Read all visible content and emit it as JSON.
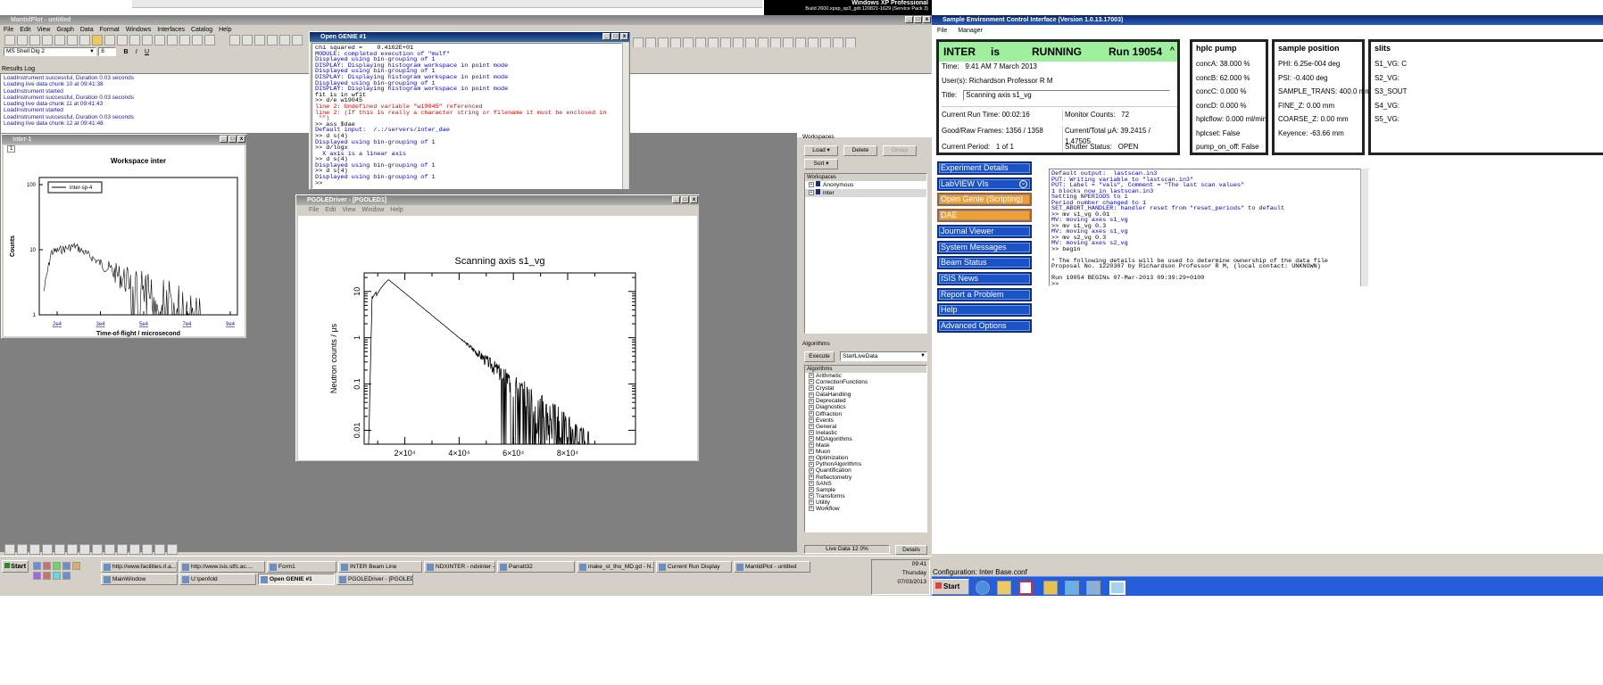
{
  "xp": {
    "title": "Windows XP Professional",
    "build": "Build 2600.xpsp_sp3_gdr.120821-1629 (Service Pack 3)"
  },
  "mantid": {
    "title": "MantidPlot - untitled",
    "menu": [
      "File",
      "Edit",
      "View",
      "Graph",
      "Data",
      "Format",
      "Windows",
      "Interfaces",
      "Catalog",
      "Help"
    ],
    "font_select": "MS Shell Dlg 2",
    "size_select": "8",
    "results_title": "Results Log",
    "log": [
      "LoadInstrument successful, Duration 0.03 seconds",
      "Loading live data chunk 10 at 09:41:38",
      "LoadInstrument started",
      "LoadInstrument successful, Duration 0.03 seconds",
      "Loading live data chunk 11 at 09:41:43",
      "LoadInstrument started",
      "LoadInstrument successful, Duration 0.03 seconds",
      "Loading live data chunk 12 at 09:41:48"
    ],
    "inter_window": {
      "title": "inter-1",
      "plot_title": "Workspace inter",
      "legend": "inter-sp-4",
      "ylabel": "Counts",
      "xlabel": "Time-of-flight / microsecond",
      "yticks": [
        "100",
        "10",
        "1"
      ],
      "xticks": [
        "2e4",
        "3e4",
        "5e4",
        "7e4",
        "9e4"
      ],
      "marker": "1"
    },
    "workspaces": {
      "title": "Workspaces",
      "load": "Load",
      "delete": "Delete",
      "group": "Group",
      "sort": "Sort",
      "items": [
        "Anonymous",
        "inter"
      ]
    },
    "algorithms": {
      "title": "Algorithms",
      "execute": "Execute",
      "selected": "StartLiveData",
      "header": "Algorithms",
      "items": [
        "Arithmetic",
        "CorrectionFunctions",
        "Crystal",
        "DataHandling",
        "Deprecated",
        "Diagnostics",
        "Diffraction",
        "Events",
        "General",
        "Inelastic",
        "MDAlgorithms",
        "Mask",
        "Muon",
        "Optimization",
        "PythonAlgorithms",
        "Quantification",
        "Reflectometry",
        "SANS",
        "Sample",
        "Transforms",
        "Utility",
        "Workflow"
      ],
      "status": "Live Data 12 0%",
      "details": "Details"
    }
  },
  "genie": {
    "title": "Open GENIE #1",
    "lines": [
      {
        "t": "chi squared =    0.4162E+01",
        "c": "k"
      },
      {
        "t": "MODULE: completed execution of \"mulf\"",
        "c": "b"
      },
      {
        "t": "Displayed using bin-grouping of 1",
        "c": "b"
      },
      {
        "t": "DISPLAY: Displaying histogram workspace in point mode",
        "c": "b"
      },
      {
        "t": "Displayed using bin-grouping of 1",
        "c": "b"
      },
      {
        "t": "DISPLAY: Displaying histogram workspace in point mode",
        "c": "b"
      },
      {
        "t": "Displayed using bin-grouping of 1",
        "c": "b"
      },
      {
        "t": "DISPLAY: Displaying histogram workspace in point mode",
        "c": "b"
      },
      {
        "t": "fit is in wfit",
        "c": "k"
      },
      {
        "t": ">> d/e w19045",
        "c": "k"
      },
      {
        "t": "line 2: Undefined variable \"w19045\" referenced",
        "c": "r"
      },
      {
        "t": "line 2: (If this is really a character string or filename it must be enclosed in",
        "c": "r"
      },
      {
        "t": " \"\")",
        "c": "r"
      },
      {
        "t": ">> ass $dae",
        "c": "k"
      },
      {
        "t": "Default input:  /.:/servers/inter_dae",
        "c": "b"
      },
      {
        "t": ">> d s(4)",
        "c": "k"
      },
      {
        "t": "Displayed using bin-grouping of 1",
        "c": "b"
      },
      {
        "t": ">> d/logx",
        "c": "k"
      },
      {
        "t": "  X axis is a linear axis",
        "c": "b"
      },
      {
        "t": ">> d s(4)",
        "c": "k"
      },
      {
        "t": "Displayed using bin-grouping of 1",
        "c": "b"
      },
      {
        "t": ">> d s(4)",
        "c": "k"
      },
      {
        "t": "Displayed using bin-grouping of 1",
        "c": "b"
      },
      {
        "t": ">>",
        "c": "k"
      }
    ]
  },
  "pgole": {
    "title": "PGOLEDriver - [PGOLED1]",
    "menu": [
      "File",
      "Edit",
      "View",
      "Window",
      "Help"
    ],
    "plot_title": "Scanning axis s1_vg",
    "ylabel": "Neutron counts / μs",
    "xlabel": "Time-of-Flight (μs)",
    "yticks": [
      "10",
      "1",
      "0.1",
      "0.01"
    ],
    "xticks": [
      "2×10⁴",
      "4×10⁴",
      "6×10⁴",
      "8×10⁴"
    ]
  },
  "secI": {
    "title": "Sample Environment Control Interface (Version 1.0.13.17003)",
    "menu": [
      "File",
      "Manager"
    ],
    "inst": "INTER",
    "is": "is",
    "state": "RUNNING",
    "run": "Run 19054",
    "time_label": "Time:",
    "time": "9:41 AM 7 March 2013",
    "users_label": "User(s):",
    "users": "Richardson Professor R M",
    "title_label": "Title:",
    "title_val": "Scanning axis s1_vg",
    "crt_label": "Current Run Time:",
    "crt": "00:02:16",
    "mc_label": "Monitor Counts:",
    "mc": "72",
    "grf_label": "Good/Raw Frames:",
    "grf": "1356 / 1358",
    "cur_label": "Current/Total μA:",
    "cur": "39.2415 / 1.47505",
    "cp_label": "Current Period:",
    "cp": "1 of 1",
    "ss_label": "Shutter Status:",
    "ss": "OPEN",
    "hplc": {
      "title": "hplc pump",
      "rows": [
        "concA: 38.000 %",
        "concB: 62.000 %",
        "concC: 0.000 %",
        "concD: 0.000 %",
        "hplcflow: 0.000 ml/min",
        "hplcset: False",
        "pump_on_off: False"
      ]
    },
    "sample": {
      "title": "sample position",
      "rows": [
        "PHI: 6.25e-004 deg",
        "PSI: -0.400 deg",
        "SAMPLE_TRANS: 400.0 mm",
        "FINE_Z: 0.00 mm",
        "COARSE_Z: 0.00 mm",
        "Keyence: -63.66 mm"
      ]
    },
    "slits": {
      "title": "slits",
      "rows": [
        "S1_VG: C",
        "S2_VG:",
        "S3_SOUT",
        "S4_VG:",
        "S5_VG:"
      ]
    },
    "links": [
      "Experiment Details",
      "LabVIEW VIs",
      "Open Genie (Scripting)",
      "DAE",
      "Journal Viewer",
      "System Messages",
      "Beam Status",
      "ISIS News",
      "Report a Problem",
      "Help",
      "Advanced Options"
    ],
    "console": [
      {
        "t": "Default output:  lastscan.in3",
        "c": "b"
      },
      {
        "t": "PUT: Writing variable to \"lastscan.in3\"",
        "c": "b"
      },
      {
        "t": "PUT: Label = \"vals\", Comment = \"The last scan values\"",
        "c": "b"
      },
      {
        "t": "1 blocks now in lastscan.in3",
        "c": "b"
      },
      {
        "t": "Setting NPERIODS to 1",
        "c": "b"
      },
      {
        "t": "Period number changed to 1",
        "c": "b"
      },
      {
        "t": "SET_ABORT_HANDLER: handler reset from \"reset_periods\" to default",
        "c": "b"
      },
      {
        "t": ">> mv s1_vg 0.01",
        "c": "k"
      },
      {
        "t": "MV: moving axes s1_vg",
        "c": "b"
      },
      {
        "t": ">> mv s1_vg 0.3",
        "c": "k"
      },
      {
        "t": "MV: moving axes s1_vg",
        "c": "b"
      },
      {
        "t": ">> mv s2_vg 0.3",
        "c": "k"
      },
      {
        "t": "MV: moving axes s2_vg",
        "c": "b"
      },
      {
        "t": ">> begin",
        "c": "k"
      },
      {
        "t": "",
        "c": "k"
      },
      {
        "t": "* The following details will be used to determine ownership of the data file",
        "c": "k"
      },
      {
        "t": "Proposal No. 1220307 by Richardson Professor R M, (local contact: UNKNOWN)",
        "c": "k"
      },
      {
        "t": "",
        "c": "k"
      },
      {
        "t": "Run 19054 BEGINs 07-Mar-2013 09:39:29+0100",
        "c": "k"
      },
      {
        "t": ">>",
        "c": "k"
      }
    ],
    "config": "Configuration: Inter Base.conf"
  },
  "taskbar": {
    "start": "Start",
    "row1": [
      "http://www.facilities.rl.a...",
      "http://www.isis.stfc.ac....",
      "Form1",
      "INTER Beam Line",
      "NDXINTER - ndxinter - R...",
      "Parratt32",
      "make_st_tho_MD.gd - N...",
      "Current Run Display",
      "MantidPlot - untitled"
    ],
    "row2": [
      "MainWindow",
      "U:\\penfold",
      "Open GENIE #1",
      "PGOLEDriver - [PGOLED1]"
    ],
    "clock": "09:41",
    "day": "Thursday",
    "date": "07/03/2013",
    "start2": "Start"
  },
  "colors": {
    "xp_blue": "#1b52c6",
    "running_green": "#9ef09e",
    "orange": "#f0a030"
  }
}
